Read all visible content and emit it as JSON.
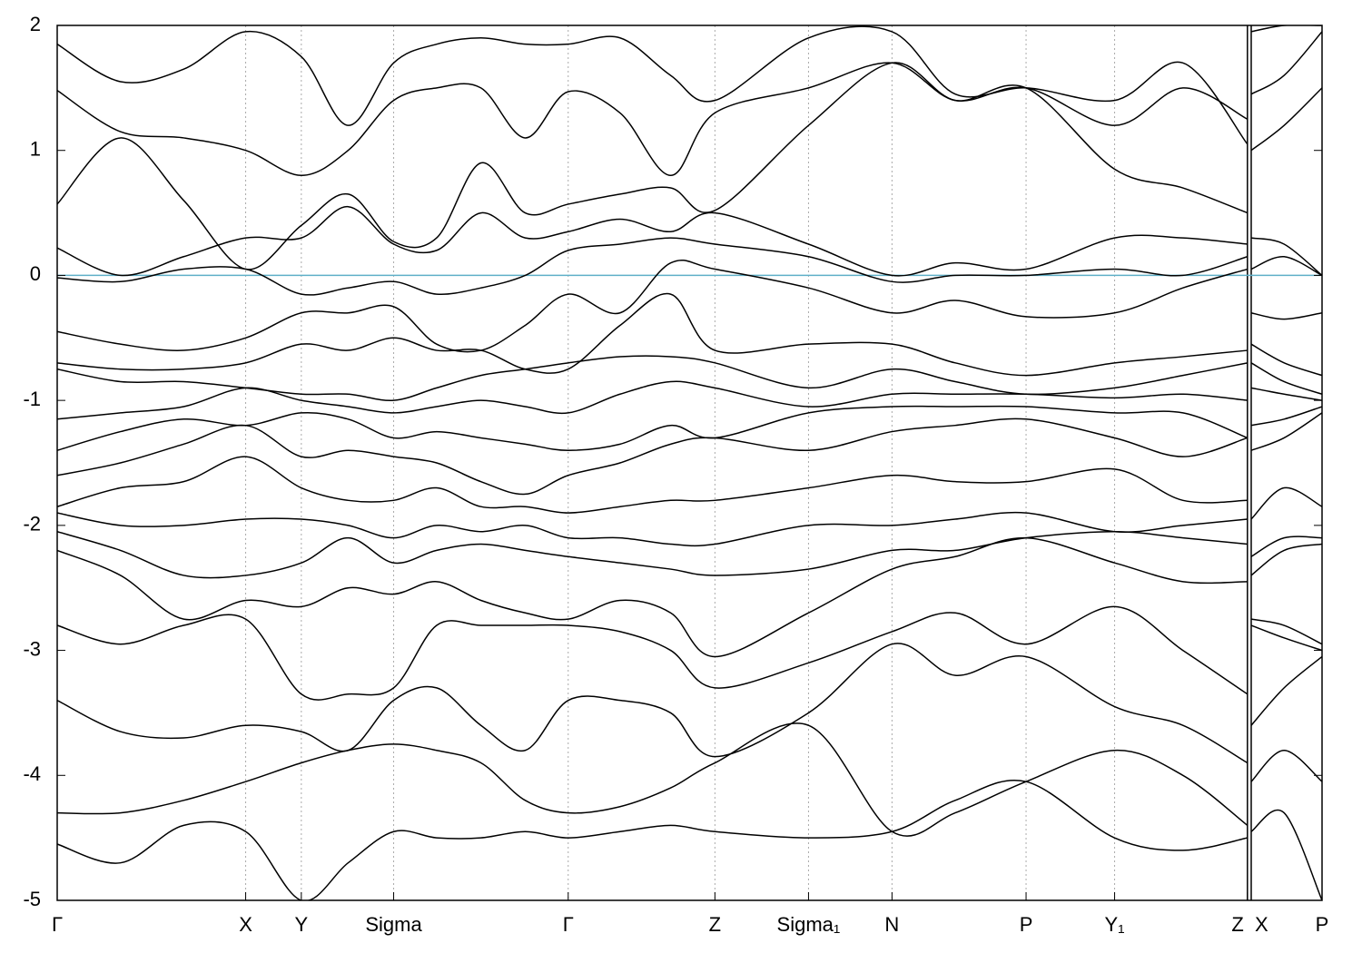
{
  "chart_data": {
    "type": "line",
    "color": "#000000",
    "hline": {
      "value": 0,
      "color": "#5fb0c8"
    },
    "xlim": [
      0,
      1
    ],
    "ylim": [
      -5,
      2
    ],
    "yticks": [
      -5,
      -4,
      -3,
      -2,
      -1,
      0,
      1,
      2
    ],
    "xticks": [
      {
        "value": 0,
        "label": "Γ"
      },
      {
        "value": 0.149,
        "label": "X"
      },
      {
        "value": 0.193,
        "label": "Y"
      },
      {
        "value": 0.266,
        "label": "Sigma"
      },
      {
        "value": 0.404,
        "label": "Γ"
      },
      {
        "value": 0.52,
        "label": "Z"
      },
      {
        "value": 0.594,
        "label": "Sigma₁"
      },
      {
        "value": 0.66,
        "label": "N"
      },
      {
        "value": 0.766,
        "label": "P"
      },
      {
        "value": 0.836,
        "label": "Y₁"
      },
      {
        "value": 0.941,
        "label": "Z"
      },
      {
        "value": 0.944,
        "label": "X"
      },
      {
        "value": 1,
        "label": "P"
      }
    ],
    "x": [
      0,
      0.05,
      0.1,
      0.149,
      0.193,
      0.23,
      0.266,
      0.3,
      0.335,
      0.37,
      0.404,
      0.445,
      0.485,
      0.52,
      0.594,
      0.66,
      0.71,
      0.766,
      0.836,
      0.89,
      0.941,
      0.9425,
      0.944,
      0.97,
      1
    ],
    "series": [
      {
        "values": [
          -4.55,
          -4.7,
          -4.4,
          -4.45,
          -5.0,
          -4.7,
          -4.45,
          -4.5,
          -4.5,
          -4.45,
          -4.5,
          -4.45,
          -4.4,
          -4.45,
          -4.5,
          -4.45,
          -4.2,
          -4.05,
          -4.5,
          -4.6,
          -4.5,
          null,
          -4.45,
          -4.3,
          -5.0
        ]
      },
      {
        "values": [
          -4.3,
          -4.3,
          -4.2,
          -4.05,
          -3.9,
          -3.8,
          -3.75,
          -3.8,
          -3.9,
          -4.2,
          -4.3,
          -4.25,
          -4.1,
          -3.9,
          -3.6,
          -4.45,
          -4.3,
          -4.05,
          -3.8,
          -4.0,
          -4.4,
          null,
          -4.05,
          -3.8,
          -4.05
        ]
      },
      {
        "values": [
          -3.4,
          -3.65,
          -3.7,
          -3.6,
          -3.65,
          -3.8,
          -3.4,
          -3.3,
          -3.6,
          -3.8,
          -3.4,
          -3.4,
          -3.5,
          -3.85,
          -3.5,
          -2.95,
          -3.2,
          -3.05,
          -3.45,
          -3.6,
          -3.9,
          null,
          -3.6,
          -3.3,
          -3.05
        ]
      },
      {
        "values": [
          -2.8,
          -2.95,
          -2.8,
          -2.75,
          -3.35,
          -3.35,
          -3.3,
          -2.8,
          -2.8,
          -2.8,
          -2.8,
          -2.85,
          -3.0,
          -3.3,
          -3.1,
          -2.85,
          -2.7,
          -2.95,
          -2.65,
          -3.0,
          -3.35,
          null,
          -2.8,
          -2.9,
          -3.0
        ]
      },
      {
        "values": [
          -2.2,
          -2.4,
          -2.75,
          -2.6,
          -2.65,
          -2.5,
          -2.55,
          -2.45,
          -2.6,
          -2.7,
          -2.75,
          -2.6,
          -2.7,
          -3.05,
          -2.7,
          -2.35,
          -2.25,
          -2.1,
          -2.3,
          -2.45,
          -2.45,
          null,
          -2.75,
          -2.8,
          -2.95
        ]
      },
      {
        "values": [
          -2.05,
          -2.2,
          -2.4,
          -2.4,
          -2.3,
          -2.1,
          -2.3,
          -2.2,
          -2.15,
          -2.2,
          -2.25,
          -2.3,
          -2.35,
          -2.4,
          -2.35,
          -2.2,
          -2.2,
          -2.1,
          -2.05,
          -2.1,
          -2.15,
          null,
          -2.4,
          -2.2,
          -2.15
        ]
      },
      {
        "values": [
          -1.9,
          -2.0,
          -2.0,
          -1.95,
          -1.95,
          -2.0,
          -2.1,
          -2.0,
          -2.05,
          -2.0,
          -2.1,
          -2.1,
          -2.15,
          -2.15,
          -2.0,
          -2.0,
          -1.95,
          -1.9,
          -2.05,
          -2.0,
          -1.95,
          null,
          -2.25,
          -2.1,
          -2.1
        ]
      },
      {
        "values": [
          -1.85,
          -1.7,
          -1.65,
          -1.45,
          -1.7,
          -1.8,
          -1.8,
          -1.7,
          -1.85,
          -1.85,
          -1.9,
          -1.85,
          -1.8,
          -1.8,
          -1.7,
          -1.6,
          -1.65,
          -1.65,
          -1.55,
          -1.8,
          -1.8,
          null,
          -1.95,
          -1.7,
          -1.85
        ]
      },
      {
        "values": [
          -1.6,
          -1.5,
          -1.35,
          -1.2,
          -1.45,
          -1.4,
          -1.45,
          -1.5,
          -1.65,
          -1.75,
          -1.6,
          -1.5,
          -1.35,
          -1.3,
          -1.4,
          -1.25,
          -1.2,
          -1.15,
          -1.3,
          -1.45,
          -1.3,
          null,
          -1.4,
          -1.3,
          -1.1
        ]
      },
      {
        "values": [
          -1.4,
          -1.25,
          -1.15,
          -1.2,
          -1.1,
          -1.15,
          -1.3,
          -1.25,
          -1.3,
          -1.35,
          -1.4,
          -1.35,
          -1.2,
          -1.3,
          -1.1,
          -1.05,
          -1.05,
          -1.05,
          -1.1,
          -1.1,
          -1.3,
          null,
          -1.2,
          -1.15,
          -1.05
        ]
      },
      {
        "values": [
          -1.15,
          -1.1,
          -1.05,
          -0.9,
          -1.0,
          -1.05,
          -1.1,
          -1.05,
          -1.0,
          -1.05,
          -1.1,
          -0.95,
          -0.85,
          -0.9,
          -1.05,
          -0.95,
          -0.95,
          -0.95,
          -0.98,
          -0.95,
          -1.0,
          null,
          -0.9,
          -0.95,
          -1.0
        ]
      },
      {
        "values": [
          -0.75,
          -0.85,
          -0.85,
          -0.9,
          -0.95,
          -0.95,
          -1.0,
          -0.9,
          -0.8,
          -0.75,
          -0.7,
          -0.65,
          -0.65,
          -0.7,
          -0.9,
          -0.75,
          -0.85,
          -0.95,
          -0.9,
          -0.8,
          -0.7,
          null,
          -0.7,
          -0.85,
          -0.95
        ]
      },
      {
        "values": [
          -0.7,
          -0.75,
          -0.75,
          -0.7,
          -0.55,
          -0.6,
          -0.5,
          -0.6,
          -0.6,
          -0.75,
          -0.75,
          -0.4,
          -0.15,
          -0.6,
          -0.55,
          -0.55,
          -0.7,
          -0.8,
          -0.7,
          -0.65,
          -0.6,
          null,
          -0.55,
          -0.7,
          -0.8
        ]
      },
      {
        "values": [
          -0.45,
          -0.55,
          -0.6,
          -0.5,
          -0.3,
          -0.3,
          -0.25,
          -0.55,
          -0.6,
          -0.4,
          -0.15,
          -0.3,
          0.1,
          0.05,
          -0.1,
          -0.3,
          -0.2,
          -0.33,
          -0.3,
          -0.1,
          0.05,
          null,
          -0.3,
          -0.35,
          -0.3
        ]
      },
      {
        "values": [
          -0.02,
          -0.05,
          0.05,
          0.05,
          -0.15,
          -0.1,
          -0.05,
          -0.15,
          -0.1,
          0.0,
          0.2,
          0.25,
          0.3,
          0.25,
          0.15,
          -0.05,
          0.0,
          0.0,
          0.05,
          0.0,
          0.15,
          null,
          0.05,
          0.15,
          0.0
        ]
      },
      {
        "values": [
          0.22,
          0.0,
          0.15,
          0.3,
          0.3,
          0.55,
          0.25,
          0.2,
          0.5,
          0.3,
          0.35,
          0.45,
          0.35,
          0.5,
          0.25,
          0.0,
          0.1,
          0.05,
          0.3,
          0.3,
          0.25,
          null,
          0.3,
          0.25,
          0.0
        ]
      },
      {
        "values": [
          0.57,
          1.1,
          0.6,
          0.05,
          0.4,
          0.65,
          0.27,
          0.3,
          0.9,
          0.5,
          0.57,
          0.65,
          0.7,
          0.52,
          1.2,
          1.7,
          1.4,
          1.5,
          0.85,
          0.7,
          0.5,
          null,
          1.0,
          1.2,
          1.5
        ]
      },
      {
        "values": [
          1.48,
          1.15,
          1.1,
          1.0,
          0.8,
          1.0,
          1.4,
          1.5,
          1.5,
          1.1,
          1.47,
          1.3,
          0.8,
          1.3,
          1.5,
          1.7,
          1.4,
          1.5,
          1.2,
          1.5,
          1.25,
          null,
          1.45,
          1.6,
          1.95
        ]
      },
      {
        "values": [
          1.85,
          1.55,
          1.65,
          1.95,
          1.75,
          1.2,
          1.7,
          1.85,
          1.9,
          1.85,
          1.85,
          1.9,
          1.6,
          1.4,
          1.9,
          1.95,
          1.45,
          1.5,
          1.4,
          1.7,
          1.05,
          null,
          1.95,
          2.0,
          2.0
        ]
      }
    ]
  }
}
